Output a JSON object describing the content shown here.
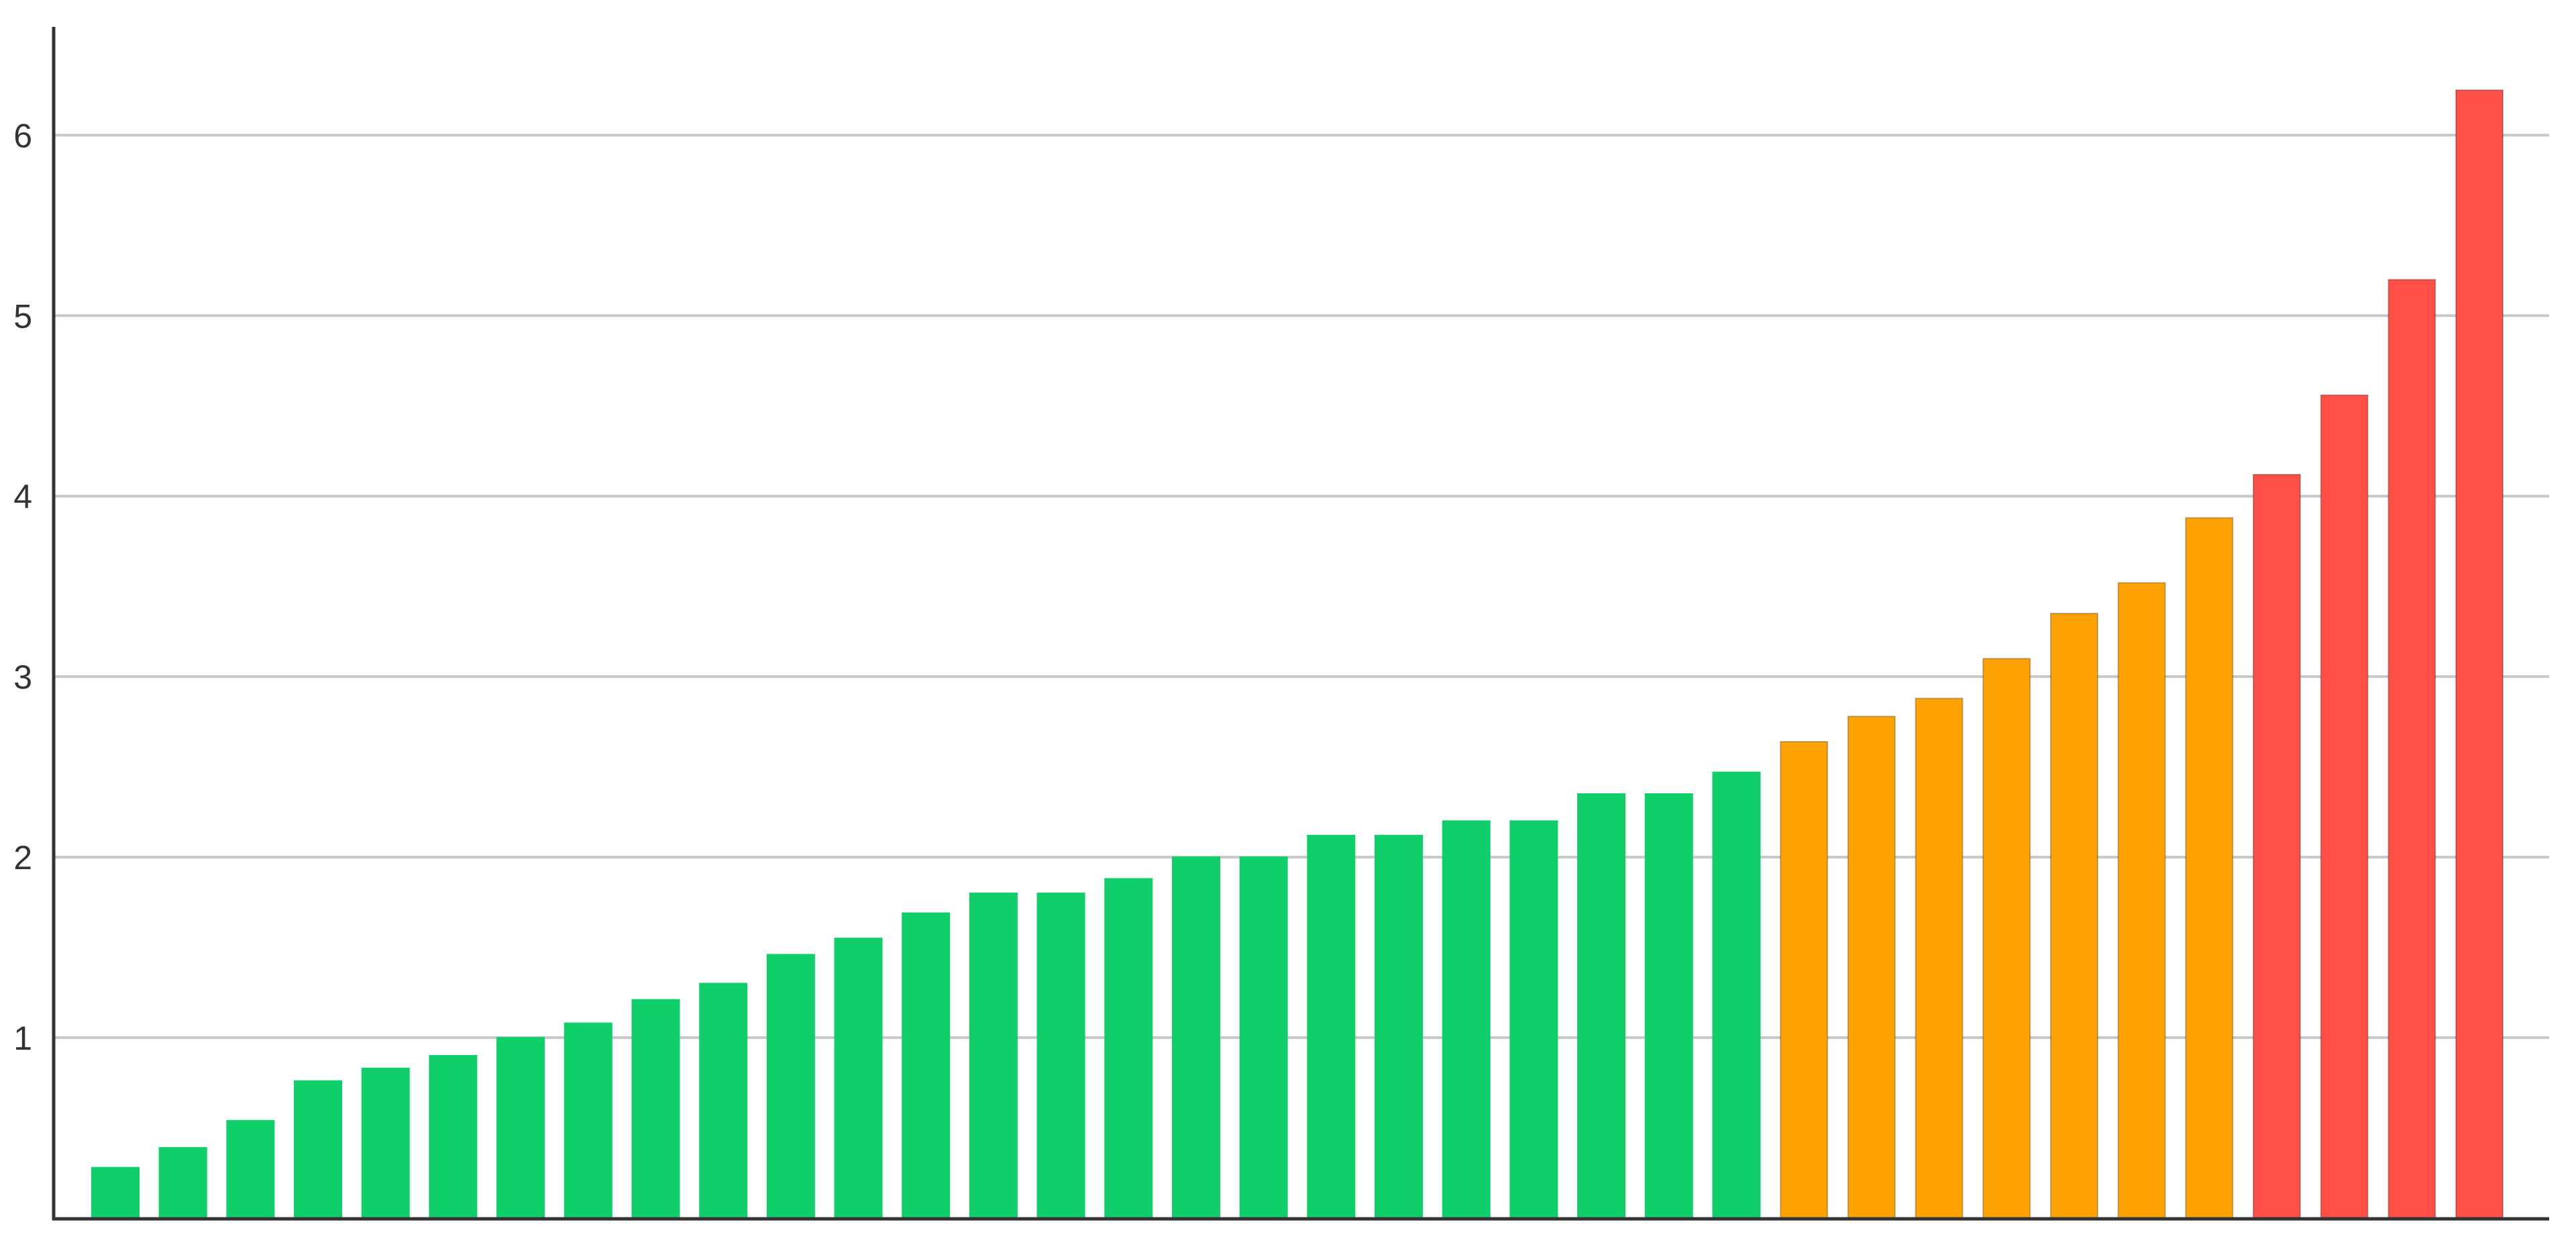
{
  "chart_data": {
    "type": "bar",
    "title": "",
    "xlabel": "",
    "ylabel": "",
    "ylim": [
      0,
      6.6
    ],
    "yticks": [
      1,
      2,
      3,
      4,
      5,
      6
    ],
    "grid": true,
    "legend": "none",
    "values": [
      0.28,
      0.39,
      0.54,
      0.76,
      0.83,
      0.9,
      1.0,
      1.08,
      1.21,
      1.3,
      1.46,
      1.55,
      1.69,
      1.8,
      1.8,
      1.88,
      2.0,
      2.0,
      2.12,
      2.12,
      2.2,
      2.2,
      2.35,
      2.35,
      2.47,
      2.64,
      2.78,
      2.88,
      3.1,
      3.35,
      3.52,
      3.88,
      4.12,
      4.56,
      5.2,
      6.25
    ],
    "bar_colors": [
      "#10cf6a",
      "#10cf6a",
      "#10cf6a",
      "#10cf6a",
      "#10cf6a",
      "#10cf6a",
      "#10cf6a",
      "#10cf6a",
      "#10cf6a",
      "#10cf6a",
      "#10cf6a",
      "#10cf6a",
      "#10cf6a",
      "#10cf6a",
      "#10cf6a",
      "#10cf6a",
      "#10cf6a",
      "#10cf6a",
      "#10cf6a",
      "#10cf6a",
      "#10cf6a",
      "#10cf6a",
      "#10cf6a",
      "#10cf6a",
      "#10cf6a",
      "#ffa305",
      "#ffa305",
      "#ffa305",
      "#ffa305",
      "#ffa305",
      "#ffa305",
      "#ffa305",
      "#ff5047",
      "#ff5047",
      "#ff5047",
      "#ff5047"
    ],
    "colors": {
      "green": "#10cf6a",
      "orange": "#ffa305",
      "red": "#ff5047",
      "grid": "#c8c8c8",
      "axis": "#333333"
    }
  }
}
